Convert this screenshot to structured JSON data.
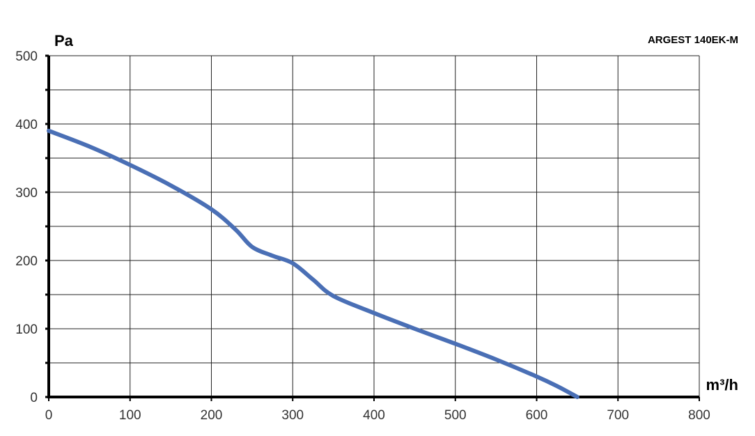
{
  "chart_data": {
    "type": "line",
    "title": "ARGEST 140EK-M",
    "xlabel": "m³/h",
    "ylabel": "Pa",
    "xlim": [
      0,
      800
    ],
    "ylim": [
      0,
      500
    ],
    "x_ticks": [
      0,
      100,
      200,
      300,
      400,
      500,
      600,
      700,
      800
    ],
    "y_ticks": [
      0,
      100,
      200,
      300,
      400,
      500
    ],
    "grid": true,
    "series": [
      {
        "color": "#4a6fb5",
        "x": [
          0,
          50,
          100,
          150,
          200,
          230,
          250,
          275,
          300,
          325,
          350,
          400,
          450,
          500,
          550,
          600,
          625,
          650
        ],
        "y": [
          390,
          367,
          340,
          310,
          275,
          245,
          220,
          207,
          196,
          172,
          148,
          123,
          100,
          78,
          55,
          30,
          16,
          0
        ]
      }
    ]
  }
}
